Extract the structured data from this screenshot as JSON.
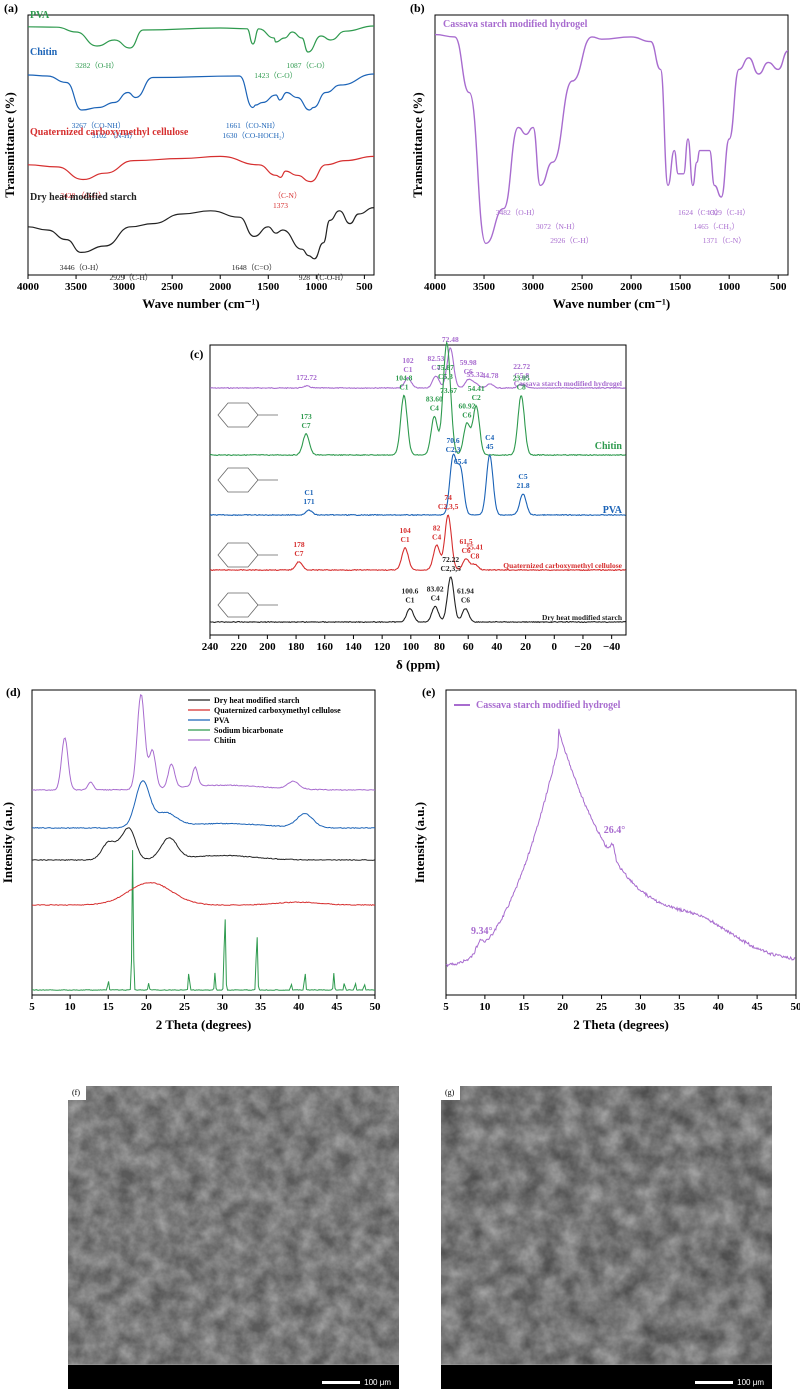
{
  "panels": {
    "a": "(a)",
    "b": "(b)",
    "c": "(c)",
    "d": "(d)",
    "e": "(e)",
    "f": "(f)",
    "g": "(g)"
  },
  "colors": {
    "green": "#2e9a4e",
    "blue": "#1b63b7",
    "red": "#d62f2f",
    "black": "#222222",
    "purple": "#a86ccf",
    "chitin_nmr": "#2e9a4e",
    "pva_nmr": "#1b63b7"
  },
  "chart_data": [
    {
      "id": "a",
      "type": "line",
      "xlabel": "Wave number (cm⁻¹)",
      "ylabel": "Transmittance (%)",
      "xlim": [
        4000,
        400
      ],
      "xticks": [
        4000,
        3500,
        3000,
        2500,
        2000,
        1500,
        1000,
        500
      ],
      "series": [
        {
          "name": "PVA",
          "color": "#2e9a4e",
          "points": [
            [
              4000,
              0.83
            ],
            [
              3700,
              0.82
            ],
            [
              3500,
              0.7
            ],
            [
              3282,
              0.35
            ],
            [
              3100,
              0.5
            ],
            [
              2940,
              0.3
            ],
            [
              2800,
              0.75
            ],
            [
              2000,
              0.8
            ],
            [
              1720,
              0.78
            ],
            [
              1660,
              0.4
            ],
            [
              1600,
              0.78
            ],
            [
              1440,
              0.55
            ],
            [
              1423,
              0.45
            ],
            [
              1330,
              0.55
            ],
            [
              1250,
              0.7
            ],
            [
              1150,
              0.55
            ],
            [
              1087,
              0.2
            ],
            [
              950,
              0.6
            ],
            [
              850,
              0.5
            ],
            [
              700,
              0.72
            ],
            [
              400,
              0.85
            ]
          ],
          "annotations": [
            {
              "x": 3282,
              "text": "3282（O-H）"
            },
            {
              "x": 1423,
              "text": "1423（C-O）"
            },
            {
              "x": 1087,
              "text": "1087（C-O）"
            }
          ]
        },
        {
          "name": "Chitin",
          "color": "#1b63b7",
          "points": [
            [
              4000,
              0.9
            ],
            [
              3800,
              0.88
            ],
            [
              3600,
              0.75
            ],
            [
              3440,
              0.2
            ],
            [
              3267,
              0.25
            ],
            [
              3102,
              0.35
            ],
            [
              2960,
              0.55
            ],
            [
              2880,
              0.45
            ],
            [
              2700,
              0.85
            ],
            [
              1800,
              0.88
            ],
            [
              1661,
              0.25
            ],
            [
              1630,
              0.3
            ],
            [
              1560,
              0.35
            ],
            [
              1420,
              0.5
            ],
            [
              1380,
              0.4
            ],
            [
              1310,
              0.55
            ],
            [
              1200,
              0.45
            ],
            [
              1070,
              0.2
            ],
            [
              1030,
              0.25
            ],
            [
              900,
              0.55
            ],
            [
              750,
              0.7
            ],
            [
              400,
              0.92
            ]
          ],
          "annotations": [
            {
              "x": 3267,
              "text": "3267（CO-NH）"
            },
            {
              "x": 3102,
              "text": "3102 （N-H）"
            },
            {
              "x": 1661,
              "text": "1661（CO-NH）"
            },
            {
              "x": 1630,
              "text": "1630（CO-HOCH₂）"
            }
          ]
        },
        {
          "name": "Quaternized carboxymethyl cellulose",
          "color": "#d62f2f",
          "points": [
            [
              4000,
              0.6
            ],
            [
              3700,
              0.55
            ],
            [
              3428,
              0.25
            ],
            [
              3200,
              0.4
            ],
            [
              2900,
              0.7
            ],
            [
              2400,
              0.75
            ],
            [
              2000,
              0.8
            ],
            [
              1600,
              0.6
            ],
            [
              1420,
              0.35
            ],
            [
              1373,
              0.3
            ],
            [
              1320,
              0.45
            ],
            [
              1200,
              0.35
            ],
            [
              1060,
              0.2
            ],
            [
              900,
              0.6
            ],
            [
              700,
              0.7
            ],
            [
              400,
              0.8
            ]
          ],
          "annotations": [
            {
              "x": 3428,
              "text": "3428 （O-H）"
            },
            {
              "x": 1373,
              "text": "1373"
            },
            {
              "x": 1300,
              "text": "（C-N）"
            }
          ]
        },
        {
          "name": "Dry heat modified starch",
          "color": "#222222",
          "points": [
            [
              4000,
              0.55
            ],
            [
              3800,
              0.5
            ],
            [
              3600,
              0.35
            ],
            [
              3446,
              0.15
            ],
            [
              3200,
              0.25
            ],
            [
              2929,
              0.55
            ],
            [
              2700,
              0.6
            ],
            [
              2400,
              0.75
            ],
            [
              2100,
              0.8
            ],
            [
              1800,
              0.7
            ],
            [
              1648,
              0.4
            ],
            [
              1500,
              0.55
            ],
            [
              1420,
              0.45
            ],
            [
              1350,
              0.5
            ],
            [
              1150,
              0.2
            ],
            [
              1080,
              0.1
            ],
            [
              1020,
              0.05
            ],
            [
              928,
              0.3
            ],
            [
              860,
              0.65
            ],
            [
              760,
              0.8
            ],
            [
              650,
              0.6
            ],
            [
              560,
              0.75
            ],
            [
              400,
              0.85
            ]
          ],
          "annotations": [
            {
              "x": 3446,
              "text": "3446（O-H）"
            },
            {
              "x": 2929,
              "text": "2929（C-H）"
            },
            {
              "x": 1648,
              "text": "1648（C=O）"
            },
            {
              "x": 928,
              "text": "928 （C-O-H）"
            }
          ]
        }
      ]
    },
    {
      "id": "b",
      "type": "line",
      "title": "Cassava starch modified hydrogel",
      "xlabel": "Wave number (cm⁻¹)",
      "ylabel": "Transmittance (%)",
      "xlim": [
        4000,
        400
      ],
      "xticks": [
        4000,
        3500,
        3000,
        2500,
        2000,
        1500,
        1000,
        500
      ],
      "series": [
        {
          "name": "Cassava starch modified hydrogel",
          "color": "#a86ccf",
          "points": [
            [
              4000,
              0.95
            ],
            [
              3800,
              0.94
            ],
            [
              3650,
              0.7
            ],
            [
              3482,
              0.05
            ],
            [
              3300,
              0.2
            ],
            [
              3150,
              0.55
            ],
            [
              3072,
              0.52
            ],
            [
              3000,
              0.55
            ],
            [
              2926,
              0.3
            ],
            [
              2800,
              0.4
            ],
            [
              2600,
              0.75
            ],
            [
              2400,
              0.94
            ],
            [
              2300,
              0.93
            ],
            [
              2000,
              0.94
            ],
            [
              1800,
              0.92
            ],
            [
              1700,
              0.8
            ],
            [
              1624,
              0.3
            ],
            [
              1560,
              0.45
            ],
            [
              1520,
              0.35
            ],
            [
              1465,
              0.35
            ],
            [
              1420,
              0.5
            ],
            [
              1371,
              0.3
            ],
            [
              1329,
              0.4
            ],
            [
              1300,
              0.45
            ],
            [
              1200,
              0.45
            ],
            [
              1150,
              0.3
            ],
            [
              1080,
              0.25
            ],
            [
              1000,
              0.5
            ],
            [
              900,
              0.8
            ],
            [
              800,
              0.85
            ],
            [
              700,
              0.78
            ],
            [
              600,
              0.83
            ],
            [
              500,
              0.8
            ],
            [
              400,
              0.88
            ]
          ],
          "annotations": [
            {
              "x": 3482,
              "text": "3482（O-H）"
            },
            {
              "x": 3072,
              "text": "3072（N-H）"
            },
            {
              "x": 2926,
              "text": "2926（C-H）"
            },
            {
              "x": 1624,
              "text": "1624（C=O）"
            },
            {
              "x": 1465,
              "text": "1465（-CH₃）"
            },
            {
              "x": 1371,
              "text": "1371（C-N）"
            },
            {
              "x": 1329,
              "text": "1329（C-H）"
            }
          ]
        }
      ]
    },
    {
      "id": "c",
      "type": "line",
      "xlabel": "δ (ppm)",
      "xlim": [
        240,
        -50
      ],
      "xticks": [
        240,
        220,
        200,
        180,
        160,
        140,
        120,
        100,
        80,
        60,
        40,
        20,
        0,
        -20,
        -40
      ],
      "series": [
        {
          "name": "Cassava starch modified hydrogel",
          "color": "#a86ccf",
          "peaks": [
            [
              172.72,
              0.05,
              "172.72"
            ],
            [
              102,
              0.25,
              "102\nC1"
            ],
            [
              82.53,
              0.3,
              "82.53\nC4"
            ],
            [
              72.48,
              1.0,
              "72.48"
            ],
            [
              59.98,
              0.2,
              "59.98\nC6"
            ],
            [
              55.32,
              0.12,
              "55.32"
            ],
            [
              44.78,
              0.1,
              "44.78"
            ],
            [
              22.72,
              0.1,
              "22.72\nC5,8"
            ]
          ]
        },
        {
          "name": "Chitin",
          "color": "#2e9a4e",
          "peaks": [
            [
              173,
              0.3,
              "173\nC7"
            ],
            [
              104.8,
              0.85,
              "104.8\nC1"
            ],
            [
              83.6,
              0.55,
              "83.60\nC4"
            ],
            [
              75.87,
              1.0,
              "75.87\nC5,3"
            ],
            [
              73.67,
              0.8,
              "73.67"
            ],
            [
              60.92,
              0.45,
              "60.92\nC6"
            ],
            [
              54.41,
              0.7,
              "54.41\nC2"
            ],
            [
              23.05,
              0.85,
              "23.05\nC8"
            ]
          ]
        },
        {
          "name": "PVA",
          "color": "#1b63b7",
          "peaks": [
            [
              171,
              0.08,
              "C1\n171"
            ],
            [
              70.6,
              0.95,
              "70.6\nC2,3"
            ],
            [
              65.4,
              0.75,
              "65.4"
            ],
            [
              45,
              1.0,
              "C4\n45"
            ],
            [
              21.8,
              0.35,
              "C5\n21.8"
            ]
          ]
        },
        {
          "name": "Quaternized carboxymethyl cellulose",
          "color": "#d62f2f",
          "peaks": [
            [
              178,
              0.15,
              "178\nC7"
            ],
            [
              104,
              0.4,
              "104\nC1"
            ],
            [
              82,
              0.45,
              "82\nC4"
            ],
            [
              74,
              1.0,
              "74\nC2,3,5"
            ],
            [
              61.5,
              0.2,
              "61.5\nC6"
            ],
            [
              55.41,
              0.1,
              "55.41\nC8"
            ]
          ]
        },
        {
          "name": "Dry heat modified starch",
          "color": "#222222",
          "peaks": [
            [
              100.6,
              0.3,
              "100.6\nC1"
            ],
            [
              83.02,
              0.35,
              "83.02\nC4"
            ],
            [
              72.22,
              1.0,
              "72.22\nC2,3,5"
            ],
            [
              61.94,
              0.3,
              "61.94\nC6"
            ]
          ]
        }
      ]
    },
    {
      "id": "d",
      "type": "line",
      "xlabel": "2 Theta (degrees)",
      "ylabel": "Intensity (a.u.)",
      "xlim": [
        5,
        50
      ],
      "xticks": [
        5,
        10,
        15,
        20,
        25,
        30,
        35,
        40,
        45,
        50
      ],
      "series": [
        {
          "name": "Dry heat modified starch",
          "color": "#222222"
        },
        {
          "name": "Quaternized carboxymethyl cellulose",
          "color": "#d62f2f"
        },
        {
          "name": "PVA",
          "color": "#1b63b7"
        },
        {
          "name": "Sodium bicarbonate",
          "color": "#2e9a4e"
        },
        {
          "name": "Chitin",
          "color": "#a86ccf"
        }
      ]
    },
    {
      "id": "e",
      "type": "line",
      "xlabel": "2 Theta (degrees)",
      "ylabel": "Intensity (a.u.)",
      "xlim": [
        5,
        50
      ],
      "xticks": [
        5,
        10,
        15,
        20,
        25,
        30,
        35,
        40,
        45,
        50
      ],
      "series": [
        {
          "name": "Cassava starch modified hydrogel",
          "color": "#a86ccf"
        }
      ],
      "annotations": [
        {
          "x": 9.34,
          "text": "9.34°"
        },
        {
          "x": 26.4,
          "text": "26.4°"
        }
      ]
    }
  ],
  "sem": {
    "f": {
      "label": "(f)",
      "scale": "100 μm"
    },
    "g": {
      "label": "(g)",
      "scale": "100 μm"
    }
  }
}
